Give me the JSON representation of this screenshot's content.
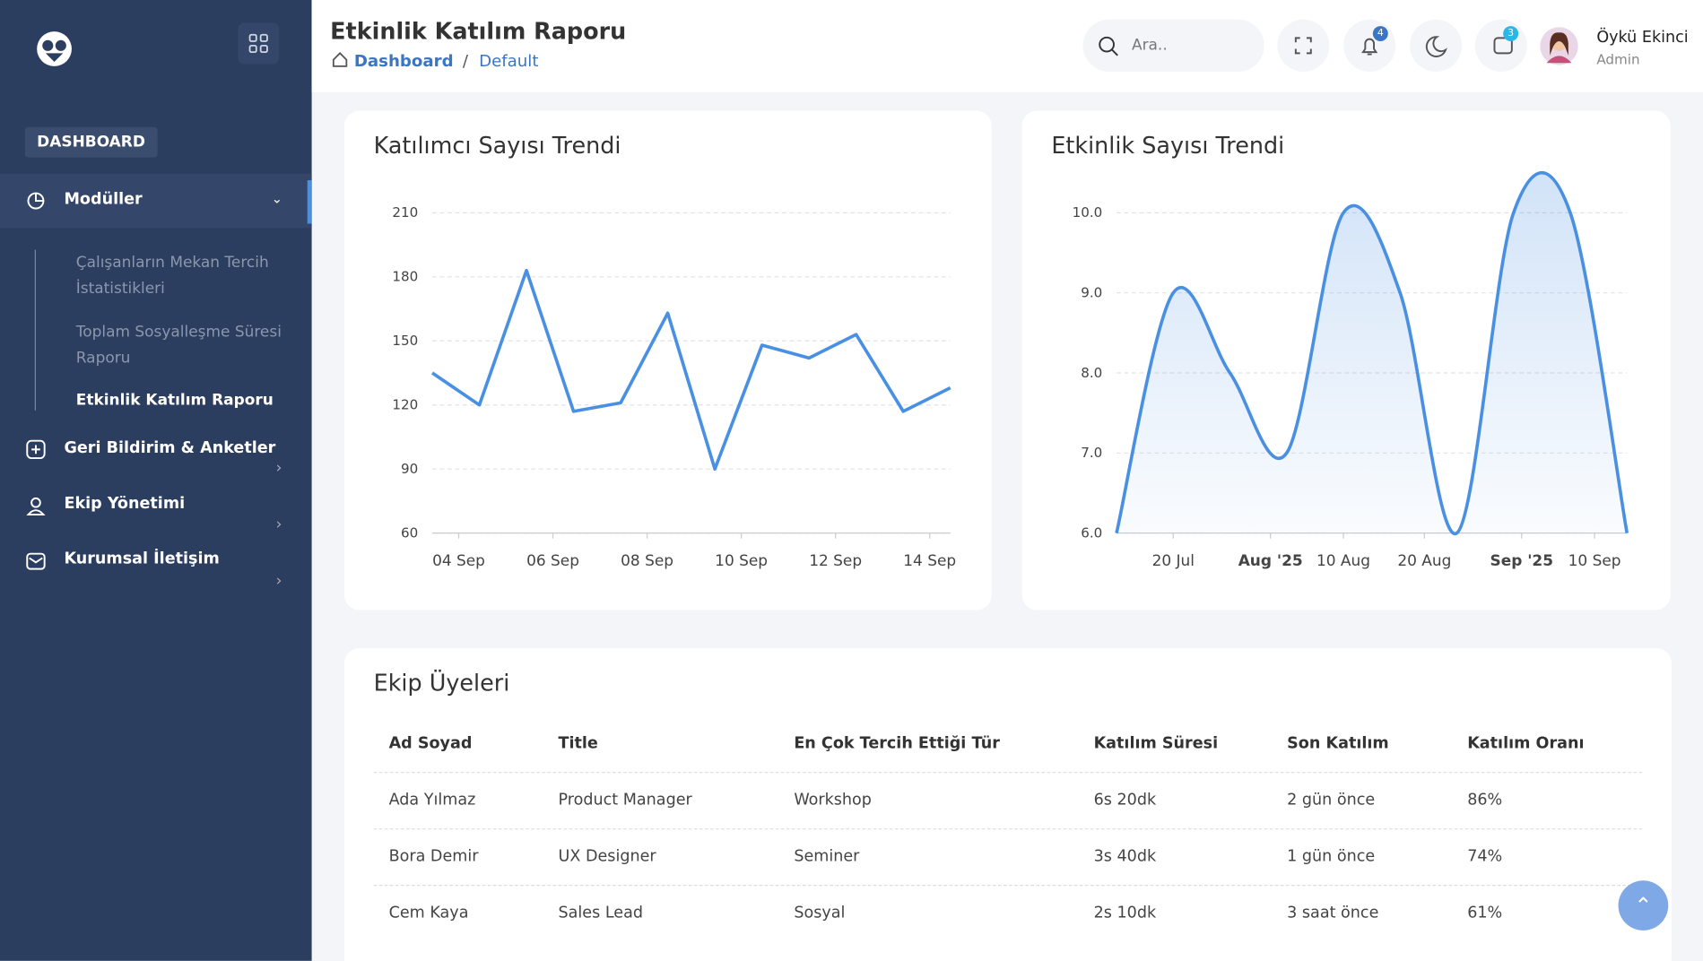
{
  "header": {
    "title": "Etkinlik Katılım Raporu",
    "breadcrumb": [
      "Dashboard",
      "Default"
    ],
    "search_placeholder": "Ara..",
    "notifications": "4",
    "messages": "3",
    "user_name": "Öykü Ekinci",
    "user_role": "Admin"
  },
  "sidebar": {
    "section": "DASHBOARD",
    "menu": [
      {
        "label": "Modüller",
        "children": [
          "Çalışanların Mekan Tercih İstatistikleri",
          "Toplam Sosyalleşme Süresi Raporu",
          "Etkinlik Katılım Raporu"
        ]
      },
      {
        "label": "Geri Bildirim & Anketler"
      },
      {
        "label": "Ekip Yönetimi"
      },
      {
        "label": "Kurumsal İletişim"
      }
    ]
  },
  "chart_data": [
    {
      "type": "line",
      "title": "Katılımcı Sayısı Trendi",
      "color": "#4a90e2",
      "categories": [
        null,
        "04 Sep",
        null,
        "06 Sep",
        null,
        "08 Sep",
        null,
        "10 Sep",
        null,
        "12 Sep",
        null,
        "14 Sep"
      ],
      "values": [
        135,
        120,
        183,
        117,
        121,
        163,
        90,
        148,
        142,
        153,
        117,
        128
      ],
      "ylim": [
        60,
        210
      ],
      "yticks": [
        60,
        90,
        120,
        150,
        180,
        210
      ],
      "grid": true
    },
    {
      "type": "area",
      "title": "Etkinlik Sayısı Trendi",
      "color": "#4a90e2",
      "x": [
        "2025-07-13",
        "2025-07-20",
        "2025-07-27",
        "2025-08-03",
        "2025-08-10",
        "2025-08-17",
        "2025-08-24",
        "2025-08-31",
        "2025-09-07",
        "2025-09-14"
      ],
      "values": [
        6,
        9,
        8,
        7,
        10,
        9,
        6,
        10,
        10,
        6
      ],
      "xlim": [
        "2025-07-13",
        "2025-09-14"
      ],
      "xticks": [
        {
          "value": "2025-07-20",
          "label": "20 Jul"
        },
        {
          "value": "2025-08-01",
          "label": "Aug '25"
        },
        {
          "value": "2025-08-10",
          "label": "10 Aug"
        },
        {
          "value": "2025-08-20",
          "label": "20 Aug"
        },
        {
          "value": "2025-09-01",
          "label": "Sep '25"
        },
        {
          "value": "2025-09-10",
          "label": "10 Sep"
        }
      ],
      "ylim": [
        6,
        10
      ],
      "yticks": [
        {
          "value": 6,
          "label": "6.0"
        },
        {
          "value": 7,
          "label": "7.0"
        },
        {
          "value": 8,
          "label": "8.0"
        },
        {
          "value": 9,
          "label": "9.0"
        },
        {
          "value": 10,
          "label": "10.0"
        }
      ],
      "grid": true
    }
  ],
  "table": {
    "title": "Ekip Üyeleri",
    "columns": [
      "Ad Soyad",
      "Title",
      "En Çok Tercih Ettiği Tür",
      "Katılım Süresi",
      "Son Katılım",
      "Katılım Oranı"
    ],
    "rows": [
      [
        "Ada Yılmaz",
        "Product Manager",
        "Workshop",
        "6s 20dk",
        "2 gün önce",
        "86%"
      ],
      [
        "Bora Demir",
        "UX Designer",
        "Seminer",
        "3s 40dk",
        "1 gün önce",
        "74%"
      ],
      [
        "Cem Kaya",
        "Sales Lead",
        "Sosyal",
        "2s 10dk",
        "3 saat önce",
        "61%"
      ]
    ]
  }
}
